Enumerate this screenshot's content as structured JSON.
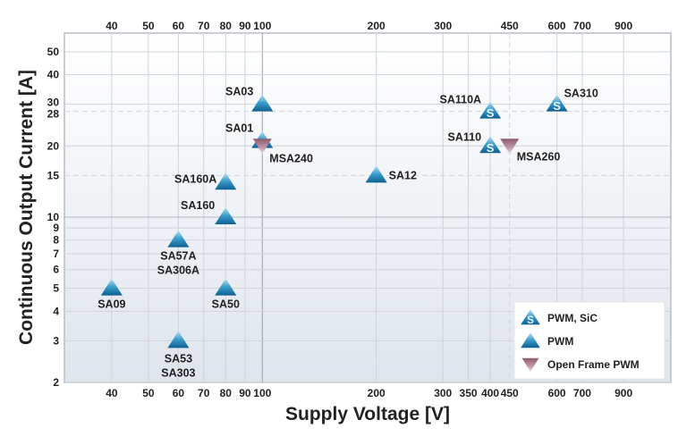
{
  "chart_data": {
    "type": "scatter",
    "xlabel": "Supply Voltage [V]",
    "ylabel": "Continuous Output Current [A]",
    "x_scale": "log",
    "y_scale": "log",
    "xlim": [
      30,
      1200
    ],
    "ylim": [
      2,
      60
    ],
    "grid": true,
    "x_ticks_top": [
      40,
      50,
      60,
      70,
      80,
      90,
      100,
      200,
      300,
      450,
      600,
      700,
      900
    ],
    "x_ticks_bottom": [
      40,
      50,
      60,
      70,
      80,
      90,
      100,
      200,
      300,
      350,
      400,
      450,
      600,
      700,
      900
    ],
    "y_ticks": [
      2,
      3,
      4,
      5,
      6,
      7,
      8,
      9,
      10,
      15,
      20,
      28,
      30,
      40,
      50
    ],
    "dashed_y": [
      15,
      28
    ],
    "dashed_x": [
      450
    ],
    "legend_position": "bottom-right",
    "series": [
      {
        "name": "PWM, SiC",
        "marker": "triangle-up-s",
        "color": "#1f7fb3",
        "points": [
          {
            "label": "SA110A",
            "x": 400,
            "y": 28
          },
          {
            "label": "SA110",
            "x": 400,
            "y": 20
          },
          {
            "label": "SA310",
            "x": 600,
            "y": 30
          }
        ]
      },
      {
        "name": "PWM",
        "marker": "triangle-up",
        "color": "#1f7fb3",
        "points": [
          {
            "label": "SA03",
            "x": 100,
            "y": 30
          },
          {
            "label": "SA01",
            "x": 100,
            "y": 21
          },
          {
            "label": "SA160A",
            "x": 80,
            "y": 14
          },
          {
            "label": "SA160",
            "x": 80,
            "y": 10
          },
          {
            "label": "SA57A\nSA306A",
            "x": 60,
            "y": 8
          },
          {
            "label": "SA09",
            "x": 40,
            "y": 5
          },
          {
            "label": "SA50",
            "x": 80,
            "y": 5
          },
          {
            "label": "SA53\nSA303",
            "x": 60,
            "y": 3
          },
          {
            "label": "SA12",
            "x": 200,
            "y": 15
          }
        ]
      },
      {
        "name": "Open Frame PWM",
        "marker": "triangle-down",
        "color": "#a8788c",
        "points": [
          {
            "label": "MSA240",
            "x": 100,
            "y": 20
          },
          {
            "label": "MSA260",
            "x": 450,
            "y": 20
          }
        ]
      }
    ]
  }
}
